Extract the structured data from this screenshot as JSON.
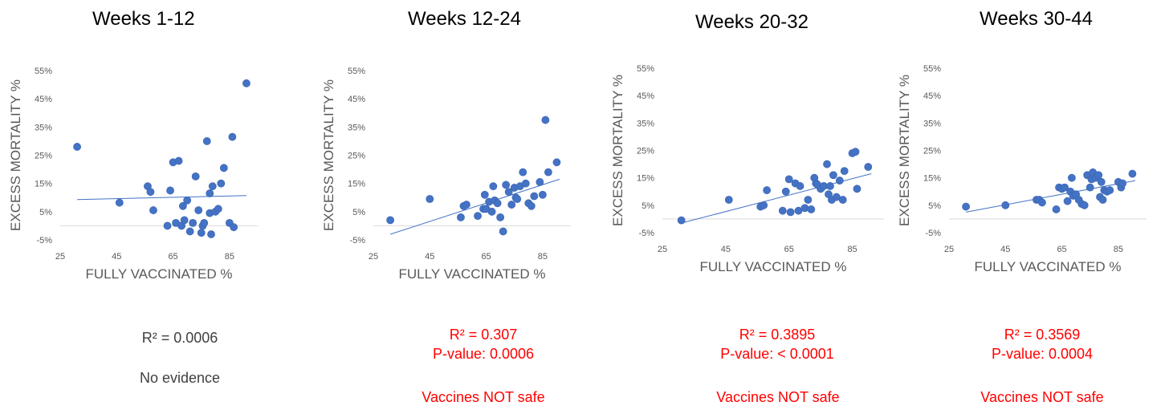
{
  "chart_data": [
    {
      "type": "scatter",
      "title": "Weeks 1-12",
      "xlabel": "FULLY VACCINATED %",
      "ylabel": "EXCESS MORTALITY %",
      "xlim": [
        25,
        95
      ],
      "ylim": [
        -5,
        55
      ],
      "xticks": [
        "25",
        "45",
        "65",
        "85"
      ],
      "yticks": [
        "-5%",
        "5%",
        "15%",
        "25%",
        "35%",
        "45%",
        "55%"
      ],
      "trendline": {
        "x": [
          31,
          91
        ],
        "y": [
          9.3,
          10.7
        ]
      },
      "points": [
        [
          31,
          28
        ],
        [
          46,
          8.2
        ],
        [
          56,
          14
        ],
        [
          57,
          12
        ],
        [
          58,
          5.5
        ],
        [
          63,
          0
        ],
        [
          64,
          12.5
        ],
        [
          65,
          22.5
        ],
        [
          66,
          1
        ],
        [
          67,
          23
        ],
        [
          68,
          0
        ],
        [
          68.5,
          7
        ],
        [
          69,
          2
        ],
        [
          70,
          9
        ],
        [
          71,
          -2
        ],
        [
          72,
          1
        ],
        [
          73,
          17.5
        ],
        [
          74,
          5.5
        ],
        [
          75,
          -2.5
        ],
        [
          75.5,
          0
        ],
        [
          76,
          1
        ],
        [
          77,
          30
        ],
        [
          78,
          11.5
        ],
        [
          78,
          4.5
        ],
        [
          78.5,
          -3
        ],
        [
          79,
          14
        ],
        [
          80,
          5
        ],
        [
          81,
          6
        ],
        [
          82,
          15
        ],
        [
          83,
          20.5
        ],
        [
          85,
          1
        ],
        [
          86,
          31.5
        ],
        [
          86.5,
          -0.5
        ],
        [
          91,
          50.5
        ]
      ],
      "stats": {
        "r2": "R² = 0.0006",
        "p_value": "",
        "verdict": "No evidence",
        "style": "grey"
      }
    },
    {
      "type": "scatter",
      "title": "Weeks 12-24",
      "xlabel": "FULLY VACCINATED %",
      "ylabel": "EXCESS MORTALITY %",
      "xlim": [
        25,
        95
      ],
      "ylim": [
        -5,
        55
      ],
      "xticks": [
        "25",
        "45",
        "65",
        "85"
      ],
      "yticks": [
        "-5%",
        "5%",
        "15%",
        "25%",
        "35%",
        "45%",
        "55%"
      ],
      "trendline": {
        "x": [
          31,
          91
        ],
        "y": [
          -3,
          16.5
        ]
      },
      "points": [
        [
          31,
          2
        ],
        [
          45,
          9.5
        ],
        [
          56,
          3
        ],
        [
          57,
          7
        ],
        [
          58,
          7.5
        ],
        [
          62,
          3.5
        ],
        [
          64,
          6
        ],
        [
          64.5,
          11
        ],
        [
          65,
          6
        ],
        [
          66,
          8.5
        ],
        [
          67,
          5
        ],
        [
          67.5,
          14
        ],
        [
          68,
          9
        ],
        [
          69,
          8
        ],
        [
          70,
          3
        ],
        [
          71,
          -2
        ],
        [
          72,
          14.5
        ],
        [
          73,
          12
        ],
        [
          74,
          7.5
        ],
        [
          75,
          13.5
        ],
        [
          75.5,
          10
        ],
        [
          76,
          9.5
        ],
        [
          77,
          14
        ],
        [
          78,
          19
        ],
        [
          79,
          15
        ],
        [
          80,
          8
        ],
        [
          81,
          7
        ],
        [
          82,
          10.5
        ],
        [
          84,
          15.5
        ],
        [
          85,
          11
        ],
        [
          86,
          37.5
        ],
        [
          87,
          19
        ],
        [
          90,
          22.5
        ]
      ],
      "stats": {
        "r2": "R² = 0.307",
        "p_value": "P-value: 0.0006",
        "verdict": "Vaccines NOT safe",
        "style": "red"
      }
    },
    {
      "type": "scatter",
      "title": "Weeks 20-32",
      "xlabel": "FULLY VACCINATED %",
      "ylabel": "EXCESS MORTALITY %",
      "xlim": [
        25,
        95
      ],
      "ylim": [
        -5,
        55
      ],
      "xticks": [
        "25",
        "45",
        "65",
        "85"
      ],
      "yticks": [
        "-5%",
        "5%",
        "15%",
        "25%",
        "35%",
        "45%",
        "55%"
      ],
      "trendline": {
        "x": [
          31,
          91
        ],
        "y": [
          -1.5,
          16.5
        ]
      },
      "points": [
        [
          31,
          -0.5
        ],
        [
          46,
          7
        ],
        [
          56,
          4.5
        ],
        [
          57,
          5
        ],
        [
          58,
          10.5
        ],
        [
          63,
          3
        ],
        [
          64,
          10
        ],
        [
          65,
          14.5
        ],
        [
          65.5,
          2.5
        ],
        [
          67,
          13
        ],
        [
          68,
          3
        ],
        [
          68.5,
          12
        ],
        [
          70,
          4
        ],
        [
          71,
          7
        ],
        [
          72,
          3.5
        ],
        [
          73,
          15
        ],
        [
          73.5,
          13
        ],
        [
          74,
          12.5
        ],
        [
          75,
          11
        ],
        [
          76,
          12
        ],
        [
          77,
          20
        ],
        [
          77.5,
          9
        ],
        [
          78,
          12
        ],
        [
          78.5,
          7
        ],
        [
          79,
          16
        ],
        [
          80,
          8
        ],
        [
          81,
          14
        ],
        [
          82,
          7
        ],
        [
          82.5,
          17.5
        ],
        [
          85,
          24
        ],
        [
          86,
          24.5
        ],
        [
          86.5,
          11
        ],
        [
          90,
          19
        ]
      ],
      "stats": {
        "r2": "R² = 0.3895",
        "p_value": "P-value: < 0.0001",
        "verdict": "Vaccines NOT safe",
        "style": "red"
      }
    },
    {
      "type": "scatter",
      "title": "Weeks 30-44",
      "xlabel": "FULLY VACCINATED %",
      "ylabel": "EXCESS MORTALITY %",
      "xlim": [
        25,
        95
      ],
      "ylim": [
        -5,
        55
      ],
      "xticks": [
        "25",
        "45",
        "65",
        "85"
      ],
      "yticks": [
        "-5%",
        "5%",
        "15%",
        "25%",
        "35%",
        "45%",
        "55%"
      ],
      "trendline": {
        "x": [
          31,
          91
        ],
        "y": [
          2.5,
          14
        ]
      },
      "points": [
        [
          31,
          4.5
        ],
        [
          45,
          5
        ],
        [
          56,
          7
        ],
        [
          57,
          7
        ],
        [
          58,
          6
        ],
        [
          63,
          3.5
        ],
        [
          64,
          11.5
        ],
        [
          65,
          11
        ],
        [
          66,
          11.5
        ],
        [
          67,
          6.5
        ],
        [
          68,
          10
        ],
        [
          68.5,
          15
        ],
        [
          69,
          8.5
        ],
        [
          70,
          9
        ],
        [
          71,
          7
        ],
        [
          72,
          5.5
        ],
        [
          73,
          5
        ],
        [
          74,
          16
        ],
        [
          75,
          11.5
        ],
        [
          75.5,
          14.5
        ],
        [
          76,
          17
        ],
        [
          77,
          15
        ],
        [
          78,
          16
        ],
        [
          78.5,
          8
        ],
        [
          79,
          13.5
        ],
        [
          79.5,
          7
        ],
        [
          80,
          10.5
        ],
        [
          81,
          10
        ],
        [
          82,
          10.5
        ],
        [
          85,
          13.5
        ],
        [
          86,
          11.5
        ],
        [
          86.5,
          13
        ],
        [
          90,
          16.5
        ]
      ],
      "stats": {
        "r2": "R² = 0.3569",
        "p_value": "P-value: 0.0004",
        "verdict": "Vaccines NOT safe",
        "style": "red"
      }
    }
  ]
}
